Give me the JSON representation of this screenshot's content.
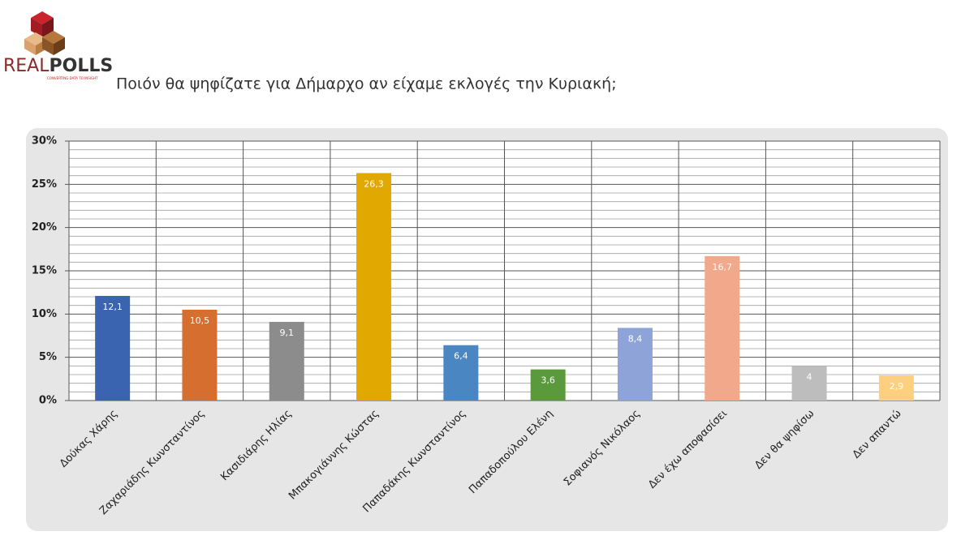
{
  "logo": {
    "parts": [
      "REAL",
      "POLLS"
    ],
    "tagline": "CONVERTING DATA TO INSIGHT"
  },
  "chart_data": {
    "type": "bar",
    "title": "Ποιόν θα ψηφίζατε για Δήμαρχο αν είχαμε εκλογές την Κυριακή;",
    "categories": [
      "Δούκας Χάρης",
      "Ζαχαριάδης Κωνσταντίνος",
      "Κασιδιάρης Ηλίας",
      "Μπακογιάννης Κώστας",
      "Παπαδάκης Κωνσταντίνος",
      "Παπαδοπούλου Ελένη",
      "Σοφιανός Νικόλαος",
      "Δεν έχω αποφασίσει",
      "Δεν θα ψηφίσω",
      "Δεν απαντώ"
    ],
    "values": [
      12.1,
      10.5,
      9.1,
      26.3,
      6.4,
      3.6,
      8.4,
      16.7,
      4,
      2.9
    ],
    "value_labels": [
      "12,1",
      "10,5",
      "9,1",
      "26,3",
      "6,4",
      "3,6",
      "8,4",
      "16,7",
      "4",
      "2,9"
    ],
    "colors": [
      "#3a63b0",
      "#d56e2e",
      "#8c8c8c",
      "#e0a800",
      "#4a86c2",
      "#5b9a3c",
      "#8ea4d8",
      "#f2a88a",
      "#bdbdbd",
      "#fdd07f"
    ],
    "ylim": [
      0,
      30
    ],
    "yticks": [
      {
        "value": 0,
        "label": "0%"
      },
      {
        "value": 5,
        "label": "5%"
      },
      {
        "value": 10,
        "label": "10%"
      },
      {
        "value": 15,
        "label": "15%"
      },
      {
        "value": 20,
        "label": "20%"
      },
      {
        "value": 25,
        "label": "25%"
      },
      {
        "value": 30,
        "label": "30%"
      }
    ],
    "grid": true
  }
}
